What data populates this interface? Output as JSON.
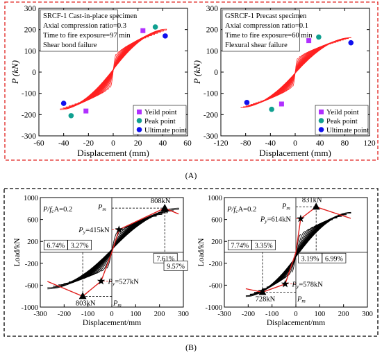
{
  "figure": {
    "panel_a_label": "(A)",
    "panel_b_label": "(B)"
  },
  "chart_data": [
    {
      "id": "a1",
      "type": "line",
      "title": "SRCF-1 Cast-in-place specimen",
      "info": [
        "SRCF-1 Cast-in-place specimen",
        "Axial compression ratio=0.3",
        "Time to fire exposure=97 min",
        "Shear bond failure"
      ],
      "xlabel": "Displacement (mm)",
      "ylabel": "P (kN)",
      "xlim": [
        -60,
        60
      ],
      "ylim": [
        -300,
        300
      ],
      "xticks": [
        -60,
        -40,
        -20,
        0,
        20,
        40,
        60
      ],
      "yticks": [
        -300,
        -200,
        -100,
        0,
        100,
        200,
        300
      ],
      "hysteresis": {
        "loops": 18,
        "pos_peak": [
          43,
          175
        ],
        "neg_peak": [
          -43,
          -150
        ],
        "elastic_slope": 10
      },
      "legend": [
        "Yeild point",
        "Peak point",
        "Ultimate point"
      ],
      "points": {
        "yield": [
          [
            24,
            195
          ],
          [
            -22,
            -183
          ]
        ],
        "peak": [
          [
            34,
            212
          ],
          [
            -34,
            -205
          ]
        ],
        "ultimate": [
          [
            42,
            170
          ],
          [
            -40,
            -147
          ]
        ]
      },
      "grid": false
    },
    {
      "id": "a2",
      "type": "line",
      "title": "GSRCF-1 Precast specimen",
      "info": [
        "GSRCF-1 Precast specimen",
        "Axial compression ratio=0.1",
        "Time to fire exposure=60 min",
        "Flexural shear failure"
      ],
      "xlabel": "Displacement (mm)",
      "ylabel": "P (kN)",
      "xlim": [
        -120,
        120
      ],
      "ylim": [
        -300,
        300
      ],
      "xticks": [
        -120,
        -80,
        -40,
        0,
        40,
        80,
        120
      ],
      "yticks": [
        -300,
        -200,
        -100,
        0,
        100,
        200,
        300
      ],
      "hysteresis": {
        "loops": 22,
        "pos_peak": [
          90,
          140
        ],
        "neg_peak": [
          -88,
          -145
        ],
        "elastic_slope": 8
      },
      "legend": [
        "Yeild point",
        "Peak point",
        "Ultimate point"
      ],
      "points": {
        "yield": [
          [
            22,
            148
          ],
          [
            -22,
            -150
          ]
        ],
        "peak": [
          [
            38,
            165
          ],
          [
            -38,
            -175
          ]
        ],
        "ultimate": [
          [
            90,
            138
          ],
          [
            -78,
            -143
          ]
        ]
      },
      "grid": false
    },
    {
      "id": "b1",
      "type": "line",
      "xlabel": "Displacement/mm",
      "ylabel": "Load/kN",
      "xlim": [
        -300,
        300
      ],
      "ylim": [
        -1000,
        1000
      ],
      "xticks": [
        -300,
        -200,
        -100,
        0,
        100,
        200,
        300
      ],
      "yticks": [
        -1000,
        -600,
        -200,
        200,
        600,
        1000
      ],
      "axial_label": "P/f",
      "axial_label_2": "c",
      "axial_label_3": "A=0.2",
      "hysteresis": {
        "loops": 12,
        "pos_peak": [
          280,
          700
        ],
        "neg_peak": [
          -270,
          -560
        ],
        "elastic_slope": 11
      },
      "pm_top": {
        "value": "808kN",
        "x": 222,
        "y": 808
      },
      "pm_bottom": {
        "value": "803kN",
        "x": -122,
        "y": -803
      },
      "py_top": {
        "value": "415kN",
        "x": 30,
        "y": 415
      },
      "py_bottom": {
        "value": "527kN",
        "x": -45,
        "y": -527
      },
      "pm_label": "P",
      "pm_sub": "m",
      "py_label": "P",
      "py_sub": "y",
      "ratios": [
        {
          "text": "6.74%",
          "x": -235,
          "y": 110
        },
        {
          "text": "3.27%",
          "x": -135,
          "y": 110
        },
        {
          "text": "7.61%",
          "x": 225,
          "y": -130
        },
        {
          "text": "9.57%",
          "x": 268,
          "y": -270
        }
      ]
    },
    {
      "id": "b2",
      "type": "line",
      "xlabel": "Displacement/mm",
      "ylabel": "Load/kN",
      "xlim": [
        -300,
        300
      ],
      "ylim": [
        -1000,
        1000
      ],
      "xticks": [
        -300,
        -200,
        -100,
        0,
        100,
        200,
        300
      ],
      "yticks": [
        -1000,
        -600,
        -200,
        200,
        600,
        1000
      ],
      "axial_label": "P/f",
      "axial_label_2": "c",
      "axial_label_3": "A=0.2",
      "hysteresis": {
        "loops": 12,
        "pos_peak": [
          230,
          620
        ],
        "neg_peak": [
          -210,
          -700
        ],
        "elastic_slope": 11
      },
      "pm_top": {
        "value": "831kN",
        "x": 85,
        "y": 831
      },
      "pm_bottom": {
        "value": "728kN",
        "x": -140,
        "y": -728
      },
      "py_top": {
        "value": "614kN",
        "x": 20,
        "y": 614
      },
      "py_bottom": {
        "value": "578kN",
        "x": -45,
        "y": -578
      },
      "pm_label": "P",
      "pm_sub": "m",
      "py_label": "P",
      "py_sub": "y",
      "ratios": [
        {
          "text": "7.74%",
          "x": -235,
          "y": 110
        },
        {
          "text": "3.35%",
          "x": -135,
          "y": 110
        },
        {
          "text": "3.19%",
          "x": 60,
          "y": -130
        },
        {
          "text": "6.99%",
          "x": 160,
          "y": -130
        }
      ]
    }
  ],
  "colors": {
    "curve_a": "#ff2020",
    "frame_a": "#e0201e",
    "yield": "#b030ff",
    "peak": "#10a090",
    "ultimate": "#1010ee",
    "curve_b": "#000000",
    "envelope_b": "#e0201e",
    "axial_b": "#e0201e"
  }
}
